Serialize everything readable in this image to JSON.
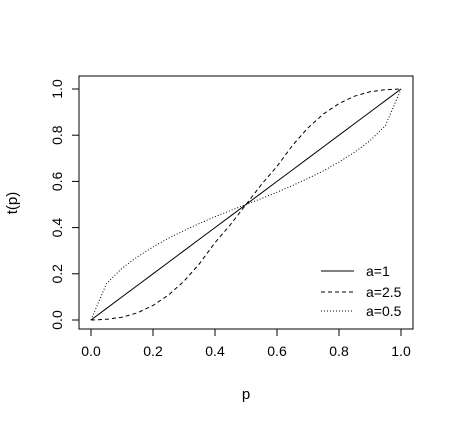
{
  "chart_data": {
    "type": "line",
    "xlabel": "p",
    "ylabel": "t(p)",
    "xlim": [
      0,
      1
    ],
    "ylim": [
      0,
      1
    ],
    "x_ticks": [
      "0.0",
      "0.2",
      "0.4",
      "0.6",
      "0.8",
      "1.0"
    ],
    "y_ticks": [
      "0.0",
      "0.2",
      "0.4",
      "0.6",
      "0.8",
      "1.0"
    ],
    "legend_position": "bottom-right",
    "grid": false,
    "x": [
      0.0,
      0.05,
      0.1,
      0.15,
      0.2,
      0.25,
      0.3,
      0.35,
      0.4,
      0.45,
      0.5,
      0.55,
      0.6,
      0.65,
      0.7,
      0.75,
      0.8,
      0.85,
      0.9,
      0.95,
      1.0
    ],
    "series": [
      {
        "name": "a=1",
        "line_style": "solid",
        "values": [
          0.0,
          0.05,
          0.1,
          0.15,
          0.2,
          0.25,
          0.3,
          0.35,
          0.4,
          0.45,
          0.5,
          0.55,
          0.6,
          0.65,
          0.7,
          0.75,
          0.8,
          0.85,
          0.9,
          0.95,
          1.0
        ]
      },
      {
        "name": "a=2.5",
        "line_style": "dashed",
        "values": [
          0.0,
          0.003,
          0.012,
          0.031,
          0.063,
          0.108,
          0.168,
          0.244,
          0.335,
          0.413,
          0.5,
          0.587,
          0.665,
          0.756,
          0.832,
          0.892,
          0.937,
          0.969,
          0.988,
          0.997,
          1.0
        ]
      },
      {
        "name": "a=0.5",
        "line_style": "dotted",
        "values": [
          0.0,
          0.158,
          0.224,
          0.274,
          0.316,
          0.354,
          0.387,
          0.418,
          0.447,
          0.474,
          0.5,
          0.526,
          0.553,
          0.582,
          0.613,
          0.646,
          0.684,
          0.726,
          0.776,
          0.842,
          1.0
        ]
      }
    ]
  }
}
